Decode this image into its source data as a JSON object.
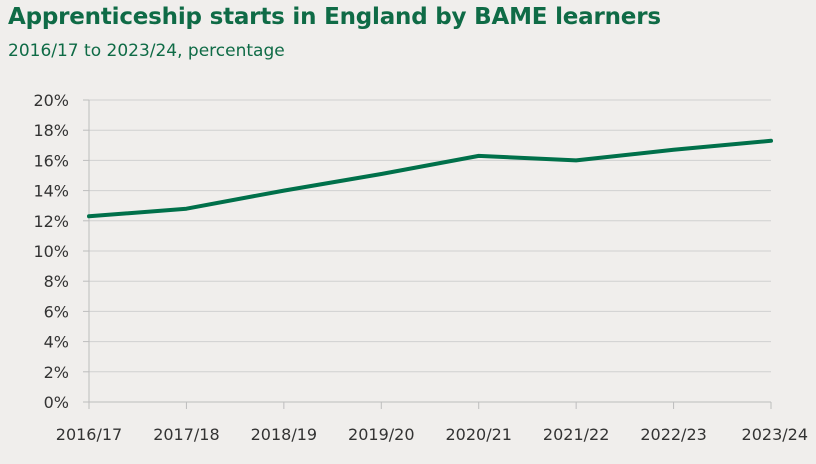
{
  "header": {
    "title": "Apprenticeship starts in England by BAME learners",
    "subtitle": "2016/17 to 2023/24, percentage"
  },
  "colors": {
    "line": "#00704a",
    "text_title": "#0f6b46",
    "grid": "#d0d0d0",
    "axis": "#bdbdbd",
    "background": "#f0eeec"
  },
  "chart_data": {
    "type": "line",
    "title": "Apprenticeship starts in England by BAME learners",
    "subtitle": "2016/17 to 2023/24, percentage",
    "xlabel": "",
    "ylabel": "",
    "categories": [
      "2016/17",
      "2017/18",
      "2018/19",
      "2019/20",
      "2020/21",
      "2021/22",
      "2022/23",
      "2023/24"
    ],
    "series": [
      {
        "values": [
          12.3,
          12.8,
          14.0,
          15.1,
          16.3,
          16.0,
          16.7,
          17.3
        ]
      }
    ],
    "ylim": [
      0,
      20
    ],
    "yticks": [
      0,
      2,
      4,
      6,
      8,
      10,
      12,
      14,
      16,
      18,
      20
    ],
    "ytick_labels": [
      "0%",
      "2%",
      "4%",
      "6%",
      "8%",
      "10%",
      "12%",
      "14%",
      "16%",
      "18%",
      "20%"
    ],
    "grid": true,
    "legend": "none"
  }
}
